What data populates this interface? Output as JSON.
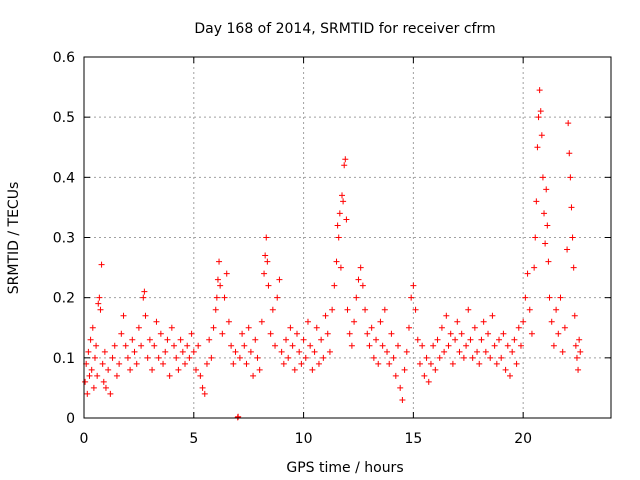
{
  "chart_data": {
    "type": "scatter",
    "title": "Day 168 of 2014, SRMTID for receiver cfrm",
    "xlabel": "GPS time / hours",
    "ylabel": "SRMTID / TECUs",
    "xlim": [
      0,
      24
    ],
    "ylim": [
      0,
      0.6
    ],
    "xticks": [
      0,
      5,
      10,
      15,
      20
    ],
    "yticks": [
      0,
      0.1,
      0.2,
      0.3,
      0.4,
      0.5,
      0.6
    ],
    "ytick_labels": [
      "0",
      "0.1",
      "0.2",
      "0.3",
      "0.4",
      "0.5",
      "0.6"
    ],
    "grid": true,
    "marker": "+",
    "series": [
      {
        "name": "SRMTID",
        "color": "#ff0000",
        "points": [
          [
            0.05,
            0.06
          ],
          [
            0.1,
            0.09
          ],
          [
            0.15,
            0.04
          ],
          [
            0.2,
            0.11
          ],
          [
            0.25,
            0.07
          ],
          [
            0.3,
            0.13
          ],
          [
            0.35,
            0.08
          ],
          [
            0.4,
            0.15
          ],
          [
            0.45,
            0.05
          ],
          [
            0.5,
            0.1
          ],
          [
            0.55,
            0.12
          ],
          [
            0.6,
            0.07
          ],
          [
            0.65,
            0.19
          ],
          [
            0.7,
            0.2
          ],
          [
            0.75,
            0.18
          ],
          [
            0.8,
            0.255
          ],
          [
            0.85,
            0.09
          ],
          [
            0.9,
            0.06
          ],
          [
            0.95,
            0.11
          ],
          [
            1.0,
            0.05
          ],
          [
            1.1,
            0.08
          ],
          [
            1.2,
            0.04
          ],
          [
            1.3,
            0.1
          ],
          [
            1.4,
            0.12
          ],
          [
            1.5,
            0.07
          ],
          [
            1.6,
            0.09
          ],
          [
            1.7,
            0.14
          ],
          [
            1.8,
            0.17
          ],
          [
            1.9,
            0.12
          ],
          [
            2.0,
            0.1
          ],
          [
            2.1,
            0.08
          ],
          [
            2.2,
            0.13
          ],
          [
            2.3,
            0.11
          ],
          [
            2.4,
            0.09
          ],
          [
            2.5,
            0.15
          ],
          [
            2.6,
            0.12
          ],
          [
            2.7,
            0.2
          ],
          [
            2.75,
            0.21
          ],
          [
            2.8,
            0.17
          ],
          [
            2.9,
            0.1
          ],
          [
            3.0,
            0.13
          ],
          [
            3.1,
            0.08
          ],
          [
            3.2,
            0.12
          ],
          [
            3.3,
            0.16
          ],
          [
            3.4,
            0.1
          ],
          [
            3.5,
            0.14
          ],
          [
            3.6,
            0.09
          ],
          [
            3.7,
            0.11
          ],
          [
            3.8,
            0.13
          ],
          [
            3.9,
            0.07
          ],
          [
            4.0,
            0.15
          ],
          [
            4.1,
            0.12
          ],
          [
            4.2,
            0.1
          ],
          [
            4.3,
            0.08
          ],
          [
            4.4,
            0.13
          ],
          [
            4.5,
            0.11
          ],
          [
            4.6,
            0.09
          ],
          [
            4.7,
            0.12
          ],
          [
            4.8,
            0.1
          ],
          [
            4.9,
            0.14
          ],
          [
            5.0,
            0.11
          ],
          [
            5.1,
            0.08
          ],
          [
            5.2,
            0.12
          ],
          [
            5.3,
            0.07
          ],
          [
            5.4,
            0.05
          ],
          [
            5.5,
            0.04
          ],
          [
            5.6,
            0.09
          ],
          [
            5.7,
            0.13
          ],
          [
            5.8,
            0.1
          ],
          [
            5.9,
            0.15
          ],
          [
            6.0,
            0.18
          ],
          [
            6.05,
            0.2
          ],
          [
            6.1,
            0.23
          ],
          [
            6.15,
            0.26
          ],
          [
            6.2,
            0.22
          ],
          [
            6.3,
            0.14
          ],
          [
            6.4,
            0.2
          ],
          [
            6.5,
            0.24
          ],
          [
            6.6,
            0.16
          ],
          [
            6.7,
            0.12
          ],
          [
            6.8,
            0.09
          ],
          [
            6.9,
            0.11
          ],
          [
            7.0,
            0.001
          ],
          [
            7.02,
            0.002
          ],
          [
            7.1,
            0.1
          ],
          [
            7.2,
            0.14
          ],
          [
            7.3,
            0.12
          ],
          [
            7.4,
            0.09
          ],
          [
            7.5,
            0.15
          ],
          [
            7.6,
            0.11
          ],
          [
            7.7,
            0.07
          ],
          [
            7.8,
            0.13
          ],
          [
            7.9,
            0.1
          ],
          [
            8.0,
            0.08
          ],
          [
            8.1,
            0.16
          ],
          [
            8.2,
            0.24
          ],
          [
            8.25,
            0.27
          ],
          [
            8.3,
            0.3
          ],
          [
            8.35,
            0.26
          ],
          [
            8.4,
            0.22
          ],
          [
            8.5,
            0.14
          ],
          [
            8.6,
            0.18
          ],
          [
            8.7,
            0.12
          ],
          [
            8.8,
            0.2
          ],
          [
            8.9,
            0.23
          ],
          [
            9.0,
            0.11
          ],
          [
            9.1,
            0.09
          ],
          [
            9.2,
            0.13
          ],
          [
            9.3,
            0.1
          ],
          [
            9.4,
            0.15
          ],
          [
            9.5,
            0.12
          ],
          [
            9.6,
            0.08
          ],
          [
            9.7,
            0.14
          ],
          [
            9.8,
            0.11
          ],
          [
            9.9,
            0.09
          ],
          [
            10.0,
            0.13
          ],
          [
            10.1,
            0.1
          ],
          [
            10.2,
            0.16
          ],
          [
            10.3,
            0.12
          ],
          [
            10.4,
            0.08
          ],
          [
            10.5,
            0.11
          ],
          [
            10.6,
            0.15
          ],
          [
            10.7,
            0.09
          ],
          [
            10.8,
            0.13
          ],
          [
            10.9,
            0.1
          ],
          [
            11.0,
            0.17
          ],
          [
            11.1,
            0.14
          ],
          [
            11.2,
            0.11
          ],
          [
            11.3,
            0.18
          ],
          [
            11.4,
            0.22
          ],
          [
            11.5,
            0.26
          ],
          [
            11.55,
            0.32
          ],
          [
            11.6,
            0.3
          ],
          [
            11.65,
            0.34
          ],
          [
            11.7,
            0.25
          ],
          [
            11.75,
            0.37
          ],
          [
            11.8,
            0.36
          ],
          [
            11.85,
            0.42
          ],
          [
            11.9,
            0.43
          ],
          [
            11.95,
            0.33
          ],
          [
            12.0,
            0.18
          ],
          [
            12.1,
            0.14
          ],
          [
            12.2,
            0.12
          ],
          [
            12.3,
            0.16
          ],
          [
            12.4,
            0.2
          ],
          [
            12.5,
            0.23
          ],
          [
            12.6,
            0.25
          ],
          [
            12.7,
            0.22
          ],
          [
            12.8,
            0.18
          ],
          [
            12.9,
            0.14
          ],
          [
            13.0,
            0.12
          ],
          [
            13.1,
            0.15
          ],
          [
            13.2,
            0.1
          ],
          [
            13.3,
            0.13
          ],
          [
            13.4,
            0.09
          ],
          [
            13.5,
            0.16
          ],
          [
            13.6,
            0.12
          ],
          [
            13.7,
            0.18
          ],
          [
            13.8,
            0.11
          ],
          [
            13.9,
            0.09
          ],
          [
            14.0,
            0.14
          ],
          [
            14.1,
            0.1
          ],
          [
            14.2,
            0.07
          ],
          [
            14.3,
            0.12
          ],
          [
            14.4,
            0.05
          ],
          [
            14.5,
            0.03
          ],
          [
            14.6,
            0.08
          ],
          [
            14.7,
            0.11
          ],
          [
            14.8,
            0.15
          ],
          [
            14.9,
            0.2
          ],
          [
            15.0,
            0.22
          ],
          [
            15.1,
            0.18
          ],
          [
            15.2,
            0.13
          ],
          [
            15.3,
            0.09
          ],
          [
            15.4,
            0.12
          ],
          [
            15.5,
            0.07
          ],
          [
            15.6,
            0.1
          ],
          [
            15.7,
            0.06
          ],
          [
            15.8,
            0.09
          ],
          [
            15.9,
            0.12
          ],
          [
            16.0,
            0.08
          ],
          [
            16.1,
            0.13
          ],
          [
            16.2,
            0.1
          ],
          [
            16.3,
            0.15
          ],
          [
            16.4,
            0.11
          ],
          [
            16.5,
            0.17
          ],
          [
            16.6,
            0.12
          ],
          [
            16.7,
            0.14
          ],
          [
            16.8,
            0.09
          ],
          [
            16.9,
            0.13
          ],
          [
            17.0,
            0.16
          ],
          [
            17.1,
            0.11
          ],
          [
            17.2,
            0.14
          ],
          [
            17.3,
            0.1
          ],
          [
            17.4,
            0.12
          ],
          [
            17.5,
            0.18
          ],
          [
            17.6,
            0.13
          ],
          [
            17.7,
            0.1
          ],
          [
            17.8,
            0.15
          ],
          [
            17.9,
            0.11
          ],
          [
            18.0,
            0.09
          ],
          [
            18.1,
            0.13
          ],
          [
            18.2,
            0.16
          ],
          [
            18.3,
            0.11
          ],
          [
            18.4,
            0.14
          ],
          [
            18.5,
            0.1
          ],
          [
            18.6,
            0.17
          ],
          [
            18.7,
            0.12
          ],
          [
            18.8,
            0.09
          ],
          [
            18.9,
            0.13
          ],
          [
            19.0,
            0.1
          ],
          [
            19.1,
            0.14
          ],
          [
            19.2,
            0.08
          ],
          [
            19.3,
            0.12
          ],
          [
            19.4,
            0.07
          ],
          [
            19.5,
            0.11
          ],
          [
            19.6,
            0.13
          ],
          [
            19.7,
            0.09
          ],
          [
            19.8,
            0.15
          ],
          [
            19.9,
            0.12
          ],
          [
            20.0,
            0.16
          ],
          [
            20.1,
            0.2
          ],
          [
            20.2,
            0.24
          ],
          [
            20.3,
            0.18
          ],
          [
            20.4,
            0.14
          ],
          [
            20.5,
            0.25
          ],
          [
            20.55,
            0.3
          ],
          [
            20.6,
            0.36
          ],
          [
            20.65,
            0.45
          ],
          [
            20.7,
            0.5
          ],
          [
            20.75,
            0.545
          ],
          [
            20.8,
            0.51
          ],
          [
            20.85,
            0.47
          ],
          [
            20.9,
            0.4
          ],
          [
            20.95,
            0.34
          ],
          [
            21.0,
            0.29
          ],
          [
            21.05,
            0.38
          ],
          [
            21.1,
            0.32
          ],
          [
            21.15,
            0.26
          ],
          [
            21.2,
            0.2
          ],
          [
            21.3,
            0.16
          ],
          [
            21.4,
            0.12
          ],
          [
            21.5,
            0.18
          ],
          [
            21.6,
            0.14
          ],
          [
            21.7,
            0.2
          ],
          [
            21.8,
            0.11
          ],
          [
            21.9,
            0.15
          ],
          [
            22.0,
            0.28
          ],
          [
            22.05,
            0.49
          ],
          [
            22.1,
            0.44
          ],
          [
            22.15,
            0.4
          ],
          [
            22.2,
            0.35
          ],
          [
            22.25,
            0.3
          ],
          [
            22.3,
            0.25
          ],
          [
            22.35,
            0.17
          ],
          [
            22.4,
            0.12
          ],
          [
            22.45,
            0.1
          ],
          [
            22.5,
            0.08
          ],
          [
            22.55,
            0.13
          ],
          [
            22.6,
            0.11
          ]
        ]
      }
    ]
  }
}
